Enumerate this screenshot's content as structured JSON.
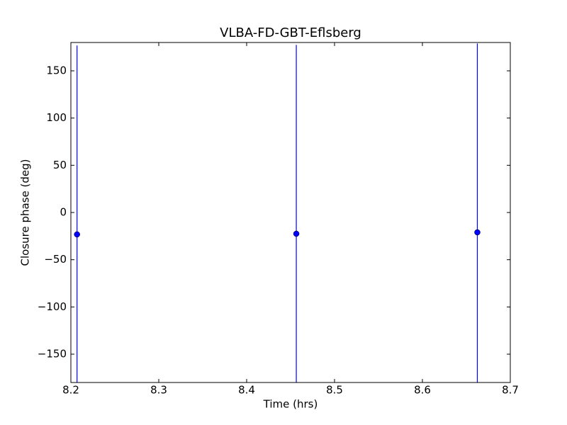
{
  "chart_data": {
    "type": "errorbar",
    "title": "VLBA-FD-GBT-Eflsberg",
    "xlabel": "Time (hrs)",
    "ylabel": "Closure phase (deg)",
    "x": [
      8.207,
      8.4565,
      8.6625
    ],
    "values": [
      -23.2,
      -22.5,
      -21
    ],
    "errors": [
      200,
      200,
      200
    ],
    "color": "#0000ff",
    "xlim": [
      8.2,
      8.7
    ],
    "xticks": [
      8.2,
      8.3,
      8.4,
      8.5,
      8.6,
      8.7
    ],
    "ylim": [
      -180,
      180
    ],
    "yticks": [
      {
        "value": -150,
        "label": "−150"
      },
      {
        "value": -100,
        "label": "−100"
      },
      {
        "value": -50,
        "label": "−50"
      },
      0,
      50,
      100,
      150
    ],
    "grid": false
  }
}
